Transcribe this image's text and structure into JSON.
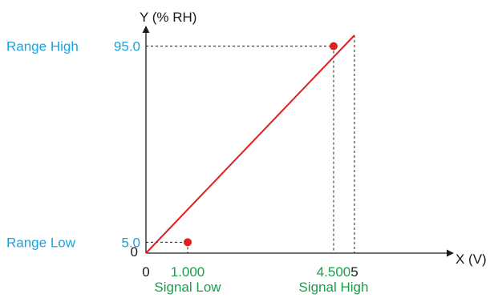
{
  "colors": {
    "axis": "#1a1a1a",
    "line": "#e0201c",
    "point": "#e0201c",
    "range_label": "#1aa3e0",
    "signal_label": "#1a9e4a"
  },
  "chart_data": {
    "type": "line",
    "title": "",
    "xlabel": "X (V)",
    "ylabel": "Y (% RH)",
    "xlim": [
      0,
      5
    ],
    "ylim": [
      0,
      100
    ],
    "grid": false,
    "origin_x_label": "0",
    "origin_y_label": "0",
    "series": [
      {
        "x": [
          0,
          5
        ],
        "y": [
          0,
          100
        ]
      }
    ],
    "points": [
      {
        "x": 1.0,
        "y": 5.0
      },
      {
        "x": 4.5,
        "y": 95.0
      }
    ],
    "x_ticks": [
      {
        "value": 1.0,
        "label": "1.000",
        "sublabel": "Signal Low",
        "color": "green"
      },
      {
        "value": 4.5,
        "label": "4.500",
        "sublabel": "Signal High",
        "color": "green"
      },
      {
        "value": 5.0,
        "label": "5",
        "sublabel": "",
        "color": "black"
      }
    ],
    "y_ticks": [
      {
        "value": 5.0,
        "label": "5.0",
        "sublabel": "Range Low"
      },
      {
        "value": 95.0,
        "label": "95.0",
        "sublabel": "Range High"
      }
    ]
  }
}
